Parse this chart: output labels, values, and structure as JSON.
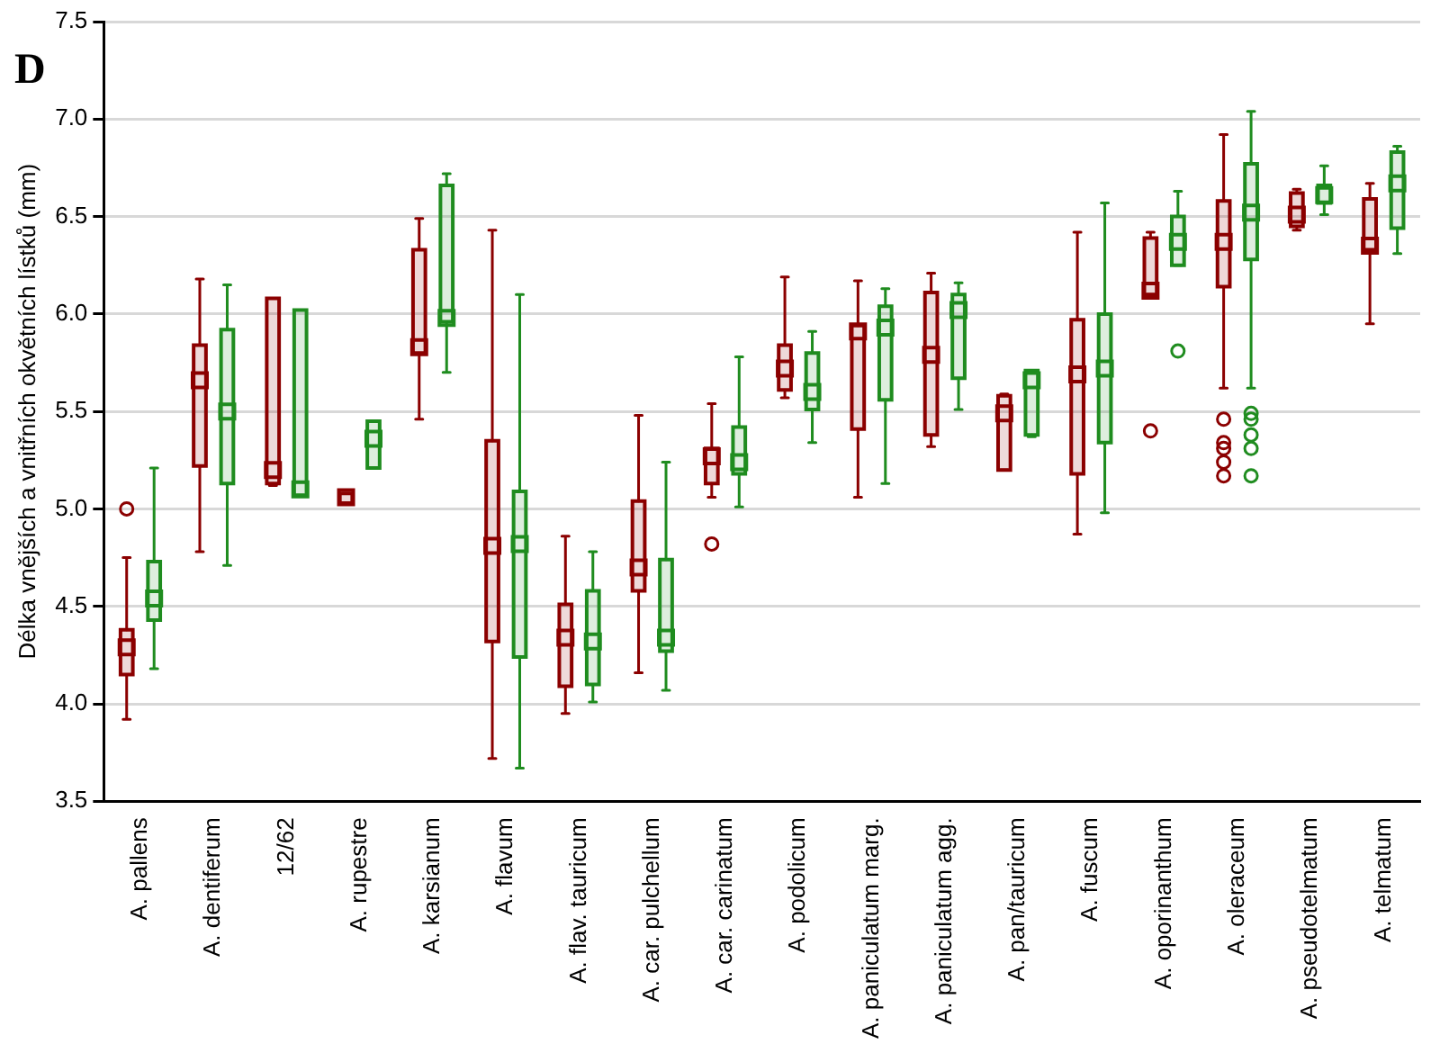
{
  "chart_data": {
    "type": "box",
    "title": "D",
    "ylabel": "Délka vnějších a vnitřních okvětních lístků (mm)",
    "categories": [
      "A. pallens",
      "A. dentiferum",
      "12/62",
      "A. rupestre",
      "A. karsianum",
      "A. flavum",
      "A. flav. tauricum",
      "A. car. pulchellum",
      "A. car. carinatum",
      "A. podolicum",
      "A. paniculatum marg.",
      "A. paniculatum agg.",
      "A. pan/tauricum",
      "A. fuscum",
      "A. oporinanthum",
      "A. oleraceum",
      "A. pseudotelmatum",
      "A. telmatum"
    ],
    "ylim": [
      3.5,
      7.5
    ],
    "yticks": [
      3.5,
      {
        "value": 4,
        "label": "4.0"
      },
      4.5,
      {
        "value": 5,
        "label": "5.0"
      },
      5.5,
      {
        "value": 6,
        "label": "6.0"
      },
      6.5,
      {
        "value": 7,
        "label": "7.0"
      },
      7.5
    ],
    "grid": "y",
    "legend": false,
    "marker": "square",
    "series": [
      {
        "color": "#8b0000",
        "boxes": [
          {
            "low": 3.92,
            "q1": 4.15,
            "median": 4.29,
            "q3": 4.38,
            "high": 4.75,
            "outliers": [
              5.0
            ]
          },
          {
            "low": 4.78,
            "q1": 5.22,
            "median": 5.66,
            "q3": 5.84,
            "high": 6.18
          },
          {
            "low": 5.12,
            "q1": 5.13,
            "median": 5.2,
            "q3": 6.08,
            "high": 6.08
          },
          {
            "low": 5.03,
            "q1": 5.03,
            "median": 5.06,
            "q3": 5.08,
            "high": 5.08
          },
          {
            "low": 5.46,
            "q1": 5.8,
            "median": 5.83,
            "q3": 6.33,
            "high": 6.49
          },
          {
            "low": 3.72,
            "q1": 4.32,
            "median": 4.81,
            "q3": 5.35,
            "high": 6.43
          },
          {
            "low": 3.95,
            "q1": 4.09,
            "median": 4.34,
            "q3": 4.51,
            "high": 4.86
          },
          {
            "low": 4.16,
            "q1": 4.58,
            "median": 4.7,
            "q3": 5.04,
            "high": 5.48
          },
          {
            "low": 5.06,
            "q1": 5.13,
            "median": 5.27,
            "q3": 5.31,
            "high": 5.54,
            "outliers": [
              4.82
            ]
          },
          {
            "low": 5.57,
            "q1": 5.61,
            "median": 5.72,
            "q3": 5.84,
            "high": 6.19
          },
          {
            "low": 5.06,
            "q1": 5.41,
            "median": 5.91,
            "q3": 5.94,
            "high": 6.17
          },
          {
            "low": 5.32,
            "q1": 5.38,
            "median": 5.79,
            "q3": 6.11,
            "high": 6.21
          },
          {
            "low": 5.2,
            "q1": 5.2,
            "median": 5.49,
            "q3": 5.58,
            "high": 5.59
          },
          {
            "low": 4.87,
            "q1": 5.18,
            "median": 5.69,
            "q3": 5.97,
            "high": 6.42
          },
          {
            "low": 6.1,
            "q1": 6.1,
            "median": 6.12,
            "q3": 6.39,
            "high": 6.42,
            "outliers": [
              5.4
            ]
          },
          {
            "low": 5.62,
            "q1": 6.14,
            "median": 6.37,
            "q3": 6.58,
            "high": 6.92,
            "outliers": [
              5.46,
              5.34,
              5.31,
              5.24,
              5.17
            ]
          },
          {
            "low": 6.43,
            "q1": 6.45,
            "median": 6.51,
            "q3": 6.62,
            "high": 6.64
          },
          {
            "low": 5.95,
            "q1": 6.33,
            "median": 6.35,
            "q3": 6.59,
            "high": 6.67
          }
        ]
      },
      {
        "color": "#1f8c1f",
        "boxes": [
          {
            "low": 4.18,
            "q1": 4.43,
            "median": 4.54,
            "q3": 4.73,
            "high": 5.21
          },
          {
            "low": 4.71,
            "q1": 5.13,
            "median": 5.5,
            "q3": 5.92,
            "high": 6.15
          },
          {
            "low": 5.07,
            "q1": 5.07,
            "median": 5.1,
            "q3": 6.02,
            "high": 6.02
          },
          {
            "low": 5.21,
            "q1": 5.21,
            "median": 5.36,
            "q3": 5.45,
            "high": 5.45
          },
          {
            "low": 5.7,
            "q1": 5.96,
            "median": 5.98,
            "q3": 6.66,
            "high": 6.72
          },
          {
            "low": 3.67,
            "q1": 4.24,
            "median": 4.82,
            "q3": 5.09,
            "high": 6.1
          },
          {
            "low": 4.01,
            "q1": 4.1,
            "median": 4.32,
            "q3": 4.58,
            "high": 4.78
          },
          {
            "low": 4.07,
            "q1": 4.27,
            "median": 4.34,
            "q3": 4.74,
            "high": 5.24
          },
          {
            "low": 5.01,
            "q1": 5.18,
            "median": 5.24,
            "q3": 5.42,
            "high": 5.78
          },
          {
            "low": 5.34,
            "q1": 5.51,
            "median": 5.6,
            "q3": 5.8,
            "high": 5.91
          },
          {
            "low": 5.13,
            "q1": 5.56,
            "median": 5.93,
            "q3": 6.04,
            "high": 6.13
          },
          {
            "low": 5.51,
            "q1": 5.67,
            "median": 6.02,
            "q3": 6.1,
            "high": 6.16
          },
          {
            "low": 5.37,
            "q1": 5.38,
            "median": 5.66,
            "q3": 5.71,
            "high": 5.71
          },
          {
            "low": 4.98,
            "q1": 5.34,
            "median": 5.72,
            "q3": 6.0,
            "high": 6.57
          },
          {
            "low": 6.25,
            "q1": 6.25,
            "median": 6.37,
            "q3": 6.5,
            "high": 6.63,
            "outliers": [
              5.81
            ]
          },
          {
            "low": 5.62,
            "q1": 6.28,
            "median": 6.52,
            "q3": 6.77,
            "high": 7.04,
            "outliers": [
              5.49,
              5.46,
              5.38,
              5.31,
              5.17
            ]
          },
          {
            "low": 6.51,
            "q1": 6.57,
            "median": 6.61,
            "q3": 6.66,
            "high": 6.76
          },
          {
            "low": 6.31,
            "q1": 6.44,
            "median": 6.67,
            "q3": 6.83,
            "high": 6.86
          }
        ]
      }
    ]
  }
}
